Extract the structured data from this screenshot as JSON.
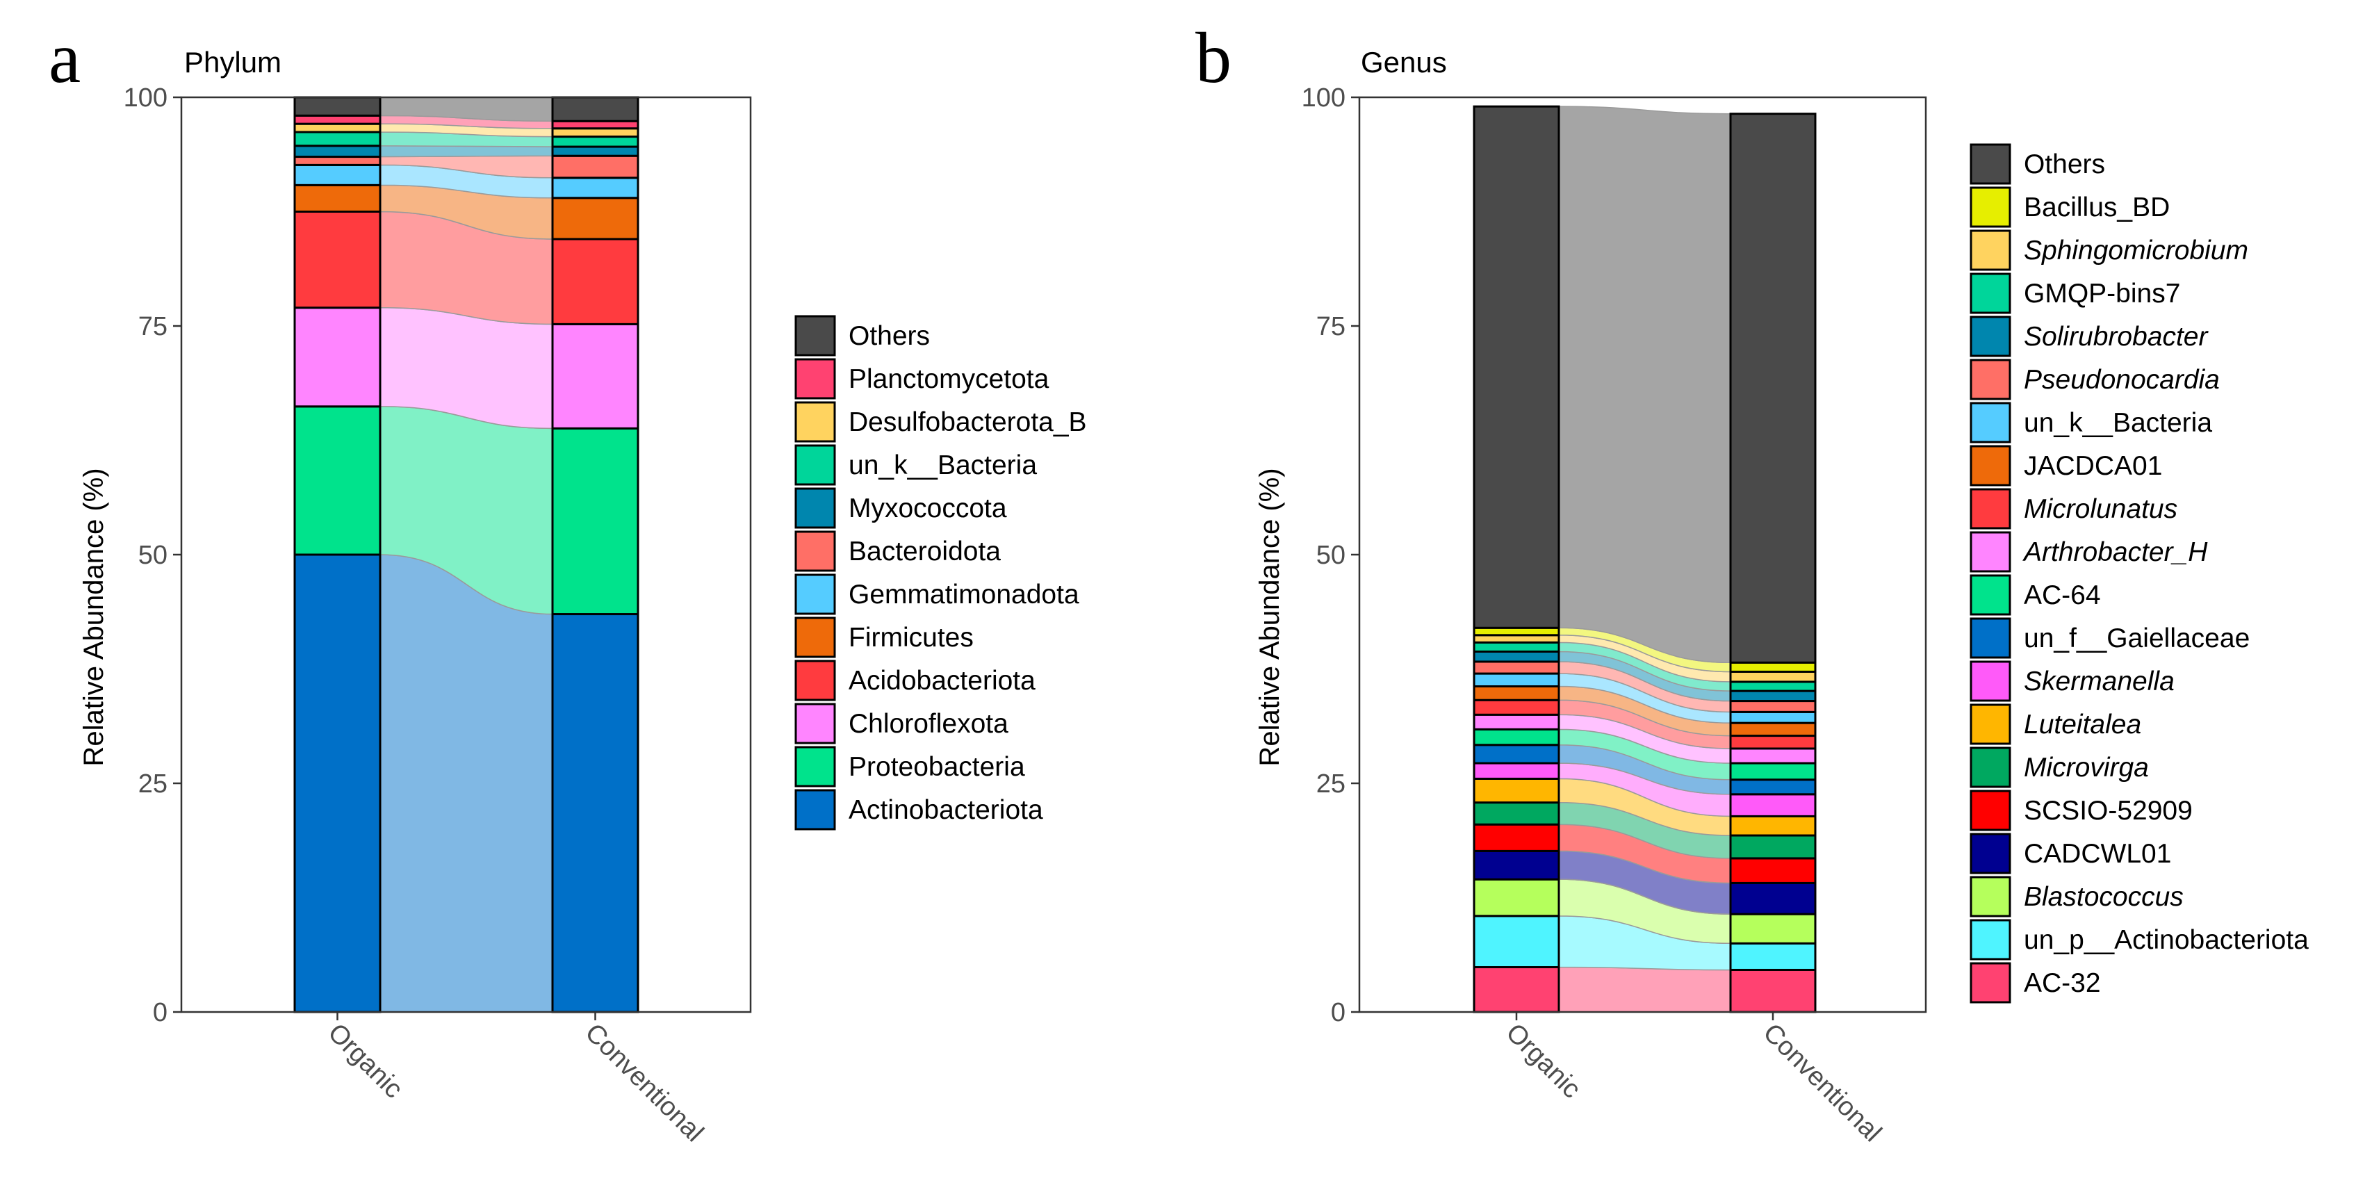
{
  "chart_data": [
    {
      "type": "bar",
      "subtype": "stacked-alluvial",
      "panel_label": "a",
      "title": "Phylum",
      "ylabel": "Relative Abundance (%)",
      "ylim": [
        0,
        100
      ],
      "yticks": [
        "0",
        "25",
        "50",
        "75",
        "100"
      ],
      "categories": [
        "Organic",
        "Conventional"
      ],
      "series": [
        {
          "name": "Actinobacteriota",
          "italic": false,
          "color": "#0070C8",
          "values": [
            50.0,
            43.5
          ]
        },
        {
          "name": "Proteobacteria",
          "italic": false,
          "color": "#00E38C",
          "values": [
            16.2,
            20.3
          ]
        },
        {
          "name": "Chloroflexota",
          "italic": false,
          "color": "#FF85FF",
          "values": [
            10.8,
            11.4
          ]
        },
        {
          "name": "Acidobacteriota",
          "italic": false,
          "color": "#FF3B3F",
          "values": [
            10.5,
            9.3
          ]
        },
        {
          "name": "Firmicutes",
          "italic": false,
          "color": "#EE6A0A",
          "values": [
            2.9,
            4.5
          ]
        },
        {
          "name": "Gemmatimonadota",
          "italic": false,
          "color": "#55CCFF",
          "values": [
            2.2,
            2.2
          ]
        },
        {
          "name": "Bacteroidota",
          "italic": false,
          "color": "#FF6F66",
          "values": [
            0.9,
            2.4
          ]
        },
        {
          "name": "Myxococcota",
          "italic": false,
          "color": "#0086AE",
          "values": [
            1.2,
            1.0
          ]
        },
        {
          "name": "un_k__Bacteria",
          "italic": false,
          "color": "#00D59A",
          "values": [
            1.5,
            1.1
          ]
        },
        {
          "name": "Desulfobacterota_B",
          "italic": false,
          "color": "#FFD35F",
          "values": [
            0.9,
            0.9
          ]
        },
        {
          "name": "Planctomycetota",
          "italic": false,
          "color": "#FF4271",
          "values": [
            0.9,
            0.8
          ]
        },
        {
          "name": "Others",
          "italic": false,
          "color": "#4A4A4A",
          "values": [
            2.0,
            2.6
          ]
        }
      ]
    },
    {
      "type": "bar",
      "subtype": "stacked-alluvial",
      "panel_label": "b",
      "title": "Genus",
      "ylabel": "Relative Abundance (%)",
      "ylim": [
        0,
        100
      ],
      "yticks": [
        "0",
        "25",
        "50",
        "75",
        "100"
      ],
      "categories": [
        "Organic",
        "Conventional"
      ],
      "series": [
        {
          "name": "AC-32",
          "italic": false,
          "color": "#FF4271",
          "values": [
            4.9,
            4.6
          ]
        },
        {
          "name": "un_p__Actinobacteriota",
          "italic": false,
          "color": "#4FF4FF",
          "values": [
            5.6,
            2.9
          ]
        },
        {
          "name": "Blastococcus",
          "italic": true,
          "color": "#B5FF5C",
          "values": [
            4.0,
            3.2
          ]
        },
        {
          "name": "CADCWL01",
          "italic": false,
          "color": "#000090",
          "values": [
            3.1,
            3.4
          ]
        },
        {
          "name": "SCSIO-52909",
          "italic": false,
          "color": "#FF0000",
          "values": [
            2.9,
            2.7
          ]
        },
        {
          "name": "Microvirga",
          "italic": true,
          "color": "#00A860",
          "values": [
            2.4,
            2.5
          ]
        },
        {
          "name": "Luteitalea",
          "italic": true,
          "color": "#FFB600",
          "values": [
            2.6,
            2.1
          ]
        },
        {
          "name": "Skermanella",
          "italic": true,
          "color": "#FF5AF9",
          "values": [
            1.7,
            2.4
          ]
        },
        {
          "name": "un_f__Gaiellaceae",
          "italic": false,
          "color": "#0070C8",
          "values": [
            2.0,
            1.6
          ]
        },
        {
          "name": "AC-64",
          "italic": false,
          "color": "#00E38C",
          "values": [
            1.7,
            1.8
          ]
        },
        {
          "name": "Arthrobacter_H",
          "italic": true,
          "color": "#FF85FF",
          "values": [
            1.6,
            1.6
          ]
        },
        {
          "name": "Microlunatus",
          "italic": true,
          "color": "#FF3B3F",
          "values": [
            1.6,
            1.4
          ]
        },
        {
          "name": "JACDCA01",
          "italic": false,
          "color": "#EE6A0A",
          "values": [
            1.5,
            1.4
          ]
        },
        {
          "name": "un_k__Bacteria",
          "italic": false,
          "color": "#55CCFF",
          "values": [
            1.4,
            1.2
          ]
        },
        {
          "name": "Pseudonocardia",
          "italic": true,
          "color": "#FF6F66",
          "values": [
            1.3,
            1.2
          ]
        },
        {
          "name": "Solirubrobacter",
          "italic": true,
          "color": "#0086AE",
          "values": [
            1.1,
            1.1
          ]
        },
        {
          "name": "GMQP-bins7",
          "italic": false,
          "color": "#00D59A",
          "values": [
            1.0,
            1.0
          ]
        },
        {
          "name": "Sphingomicrobium",
          "italic": true,
          "color": "#FFD35F",
          "values": [
            0.8,
            1.1
          ]
        },
        {
          "name": "Bacillus_BD",
          "italic": false,
          "color": "#E6EE00",
          "values": [
            0.8,
            1.0
          ]
        },
        {
          "name": "Others",
          "italic": false,
          "color": "#4A4A4A",
          "values": [
            57.0,
            60.0
          ]
        }
      ]
    }
  ]
}
